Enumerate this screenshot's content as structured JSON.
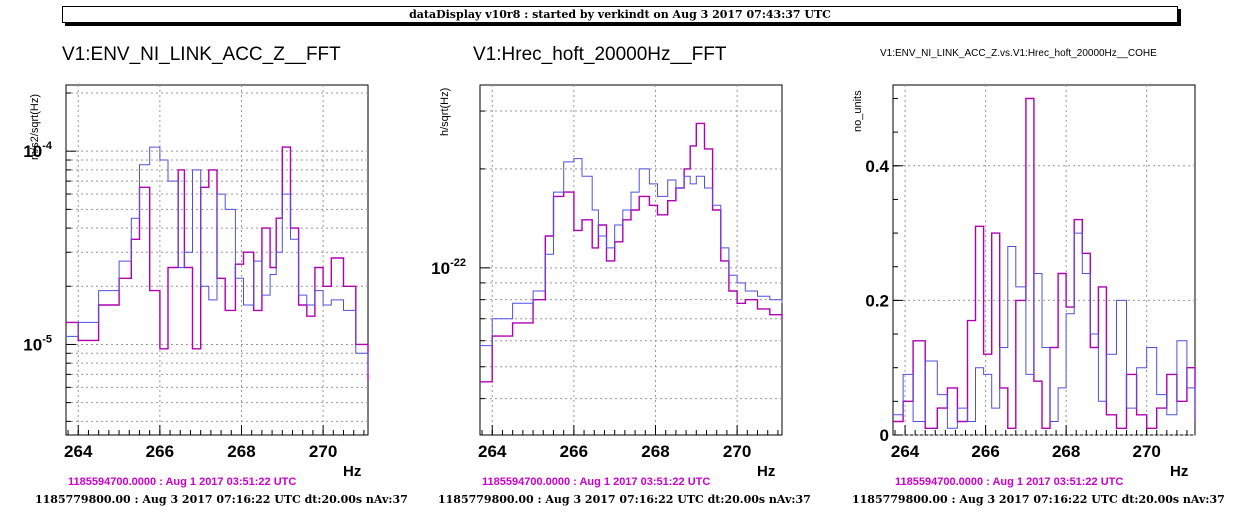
{
  "banner": "dataDisplay v10r8 : started by verkindt on Aug  3 2017 07:43:37 UTC",
  "colors": {
    "reference": "#b000b0",
    "current": "#5050e0",
    "grid": "#999999",
    "footer_reference": "#cc00cc"
  },
  "chart_data": [
    {
      "type": "line",
      "title": "V1:ENV_NI_LINK_ACC_Z__FFT",
      "ylabel": "m/s2/sqrt(Hz)",
      "xlabel": "Hz",
      "yscale": "log",
      "xlim": [
        263.7,
        271.1
      ],
      "ylim": [
        3.4e-06,
        0.00022
      ],
      "xticks": [
        264,
        266,
        268,
        270
      ],
      "xtick_labels": [
        "264",
        "266",
        "268",
        "270"
      ],
      "yticks": [
        1e-05,
        0.0001
      ],
      "ytick_labels": [
        "10-5",
        "10-4"
      ],
      "grid": true,
      "x": [
        263.7,
        264.0,
        264.5,
        265.0,
        265.3,
        265.5,
        265.75,
        266.0,
        266.2,
        266.45,
        266.6,
        266.8,
        267.0,
        267.2,
        267.4,
        267.6,
        267.85,
        268.05,
        268.3,
        268.5,
        268.7,
        268.85,
        269.0,
        269.2,
        269.4,
        269.6,
        269.8,
        270.0,
        270.2,
        270.5,
        270.8,
        271.1
      ],
      "series": [
        {
          "name": "1185594700.0000 : Aug  1 2017 03:51:22 UTC",
          "values": [
            1.3e-05,
            1.05e-05,
            1.6e-05,
            2.2e-05,
            3.5e-05,
            6.5e-05,
            1.9e-05,
            9.5e-06,
            2.5e-05,
            8e-05,
            2.5e-05,
            9.5e-06,
            6.5e-05,
            8e-05,
            2.2e-05,
            1.5e-05,
            2.6e-05,
            3e-05,
            1.5e-05,
            4e-05,
            2.5e-05,
            4.5e-05,
            0.000105,
            4e-05,
            1.6e-05,
            1.4e-05,
            2.5e-05,
            2e-05,
            2.8e-05,
            2e-05,
            1e-05,
            6.5e-06
          ]
        },
        {
          "name": "1185779800.00 : Aug  3 2017 07:16:22 UTC dt:20.00s nAv:37",
          "values": [
            1.1e-05,
            1.3e-05,
            1.9e-05,
            2.7e-05,
            4.5e-05,
            8.5e-05,
            0.000105,
            9e-05,
            7e-05,
            2.5e-05,
            3e-05,
            8e-05,
            2e-05,
            1.7e-05,
            6e-05,
            5e-05,
            2.2e-05,
            1.6e-05,
            2.7e-05,
            1.8e-05,
            2.3e-05,
            3e-05,
            6e-05,
            3.5e-05,
            1.8e-05,
            1.6e-05,
            1.9e-05,
            1.6e-05,
            1.7e-05,
            1.5e-05,
            9e-06,
            7e-06
          ]
        }
      ]
    },
    {
      "type": "line",
      "title": "V1:Hrec_hoft_20000Hz__FFT",
      "ylabel": "h/sqrt(Hz)",
      "xlabel": "Hz",
      "yscale": "log",
      "xlim": [
        263.7,
        271.1
      ],
      "ylim": [
        3.1e-23,
        3.6e-22
      ],
      "xticks": [
        264,
        266,
        268,
        270
      ],
      "xtick_labels": [
        "264",
        "266",
        "268",
        "270"
      ],
      "yticks": [
        1e-22
      ],
      "ytick_labels": [
        "10-22"
      ],
      "grid": true,
      "x": [
        263.7,
        264.0,
        264.5,
        265.0,
        265.3,
        265.5,
        265.75,
        266.0,
        266.2,
        266.45,
        266.6,
        266.8,
        267.0,
        267.2,
        267.4,
        267.6,
        267.85,
        268.05,
        268.3,
        268.5,
        268.7,
        268.85,
        269.0,
        269.2,
        269.4,
        269.6,
        269.8,
        270.0,
        270.2,
        270.5,
        270.8,
        271.1
      ],
      "series": [
        {
          "name": "1185594700.0000 : Aug  1 2017 03:51:22 UTC",
          "values": [
            4.5e-23,
            6.2e-23,
            6.8e-23,
            8e-23,
            1.25e-22,
            1.65e-22,
            1.7e-22,
            1.3e-22,
            1.4e-22,
            1.15e-22,
            1.35e-22,
            1.05e-22,
            1.2e-22,
            1.4e-22,
            1.5e-22,
            1.65e-22,
            1.55e-22,
            1.45e-22,
            1.6e-22,
            1.75e-22,
            2e-22,
            2.35e-22,
            2.75e-22,
            2.3e-22,
            1.5e-22,
            1.05e-22,
            8.5e-23,
            7.8e-23,
            8e-23,
            7.5e-23,
            7.2e-23,
            7e-23
          ]
        },
        {
          "name": "1185779800.00 : Aug  3 2017 07:16:22 UTC dt:20.00s nAv:37",
          "values": [
            5.8e-23,
            7e-23,
            7.8e-23,
            8.5e-23,
            1.1e-22,
            1.7e-22,
            2.1e-22,
            2.15e-22,
            1.9e-22,
            1.5e-22,
            1.25e-22,
            1.15e-22,
            1.35e-22,
            1.5e-22,
            1.7e-22,
            2e-22,
            1.8e-22,
            1.65e-22,
            1.85e-22,
            1.75e-22,
            1.9e-22,
            1.8e-22,
            1.9e-22,
            1.75e-22,
            1.55e-22,
            1.15e-22,
            9.5e-23,
            9e-23,
            8.5e-23,
            8.2e-23,
            8e-23,
            7.8e-23
          ]
        }
      ]
    },
    {
      "type": "line",
      "title": "V1:ENV_NI_LINK_ACC_Z.vs.V1:Hrec_hoft_20000Hz__COHE",
      "ylabel": "no_units",
      "xlabel": "Hz",
      "yscale": "linear",
      "xlim": [
        263.7,
        271.2
      ],
      "ylim": [
        0,
        0.52
      ],
      "xticks": [
        264,
        266,
        268,
        270
      ],
      "xtick_labels": [
        "264",
        "266",
        "268",
        "270"
      ],
      "yticks": [
        0,
        0.2,
        0.4
      ],
      "ytick_labels": [
        "0",
        "0.2",
        "0.4"
      ],
      "grid": true,
      "x": [
        263.7,
        263.95,
        264.2,
        264.5,
        264.8,
        265.05,
        265.3,
        265.55,
        265.75,
        265.95,
        266.15,
        266.35,
        266.55,
        266.75,
        267.0,
        267.2,
        267.4,
        267.6,
        267.8,
        268.0,
        268.2,
        268.4,
        268.6,
        268.8,
        269.0,
        269.25,
        269.5,
        269.75,
        270.0,
        270.25,
        270.5,
        270.75,
        271.0,
        271.2
      ],
      "series": [
        {
          "name": "1185594700.0000 : Aug  1 2017 03:51:22 UTC",
          "values": [
            0.02,
            0.05,
            0.14,
            0.01,
            0.04,
            0.07,
            0.02,
            0.17,
            0.31,
            0.12,
            0.3,
            0.07,
            0.01,
            0.2,
            0.5,
            0.08,
            0.01,
            0.13,
            0.24,
            0.19,
            0.32,
            0.27,
            0.13,
            0.22,
            0.03,
            0.01,
            0.09,
            0.03,
            0.01,
            0.04,
            0.09,
            0.05,
            0.1,
            0.02
          ]
        },
        {
          "name": "1185779800.00 : Aug  3 2017 07:16:22 UTC dt:20.00s nAv:37",
          "values": [
            0.03,
            0.09,
            0.02,
            0.11,
            0.06,
            0.01,
            0.04,
            0.02,
            0.1,
            0.09,
            0.04,
            0.13,
            0.28,
            0.22,
            0.09,
            0.24,
            0.13,
            0.02,
            0.07,
            0.18,
            0.3,
            0.24,
            0.15,
            0.05,
            0.12,
            0.2,
            0.04,
            0.1,
            0.13,
            0.06,
            0.03,
            0.14,
            0.07,
            0.02
          ]
        }
      ]
    }
  ],
  "footers": [
    {
      "reference": "1185594700.0000 : Aug  1 2017 03:51:22 UTC",
      "current": "1185779800.00 : Aug  3 2017 07:16:22 UTC dt:20.00s nAv:37"
    },
    {
      "reference": "1185594700.0000 : Aug  1 2017 03:51:22 UTC",
      "current": "1185779800.00 : Aug  3 2017 07:16:22 UTC dt:20.00s nAv:37"
    },
    {
      "reference": "1185594700.0000 : Aug  1 2017 03:51:22 UTC",
      "current": "1185779800.00 : Aug  3 2017 07:16:22 UTC dt:20.00s nAv:37"
    }
  ]
}
